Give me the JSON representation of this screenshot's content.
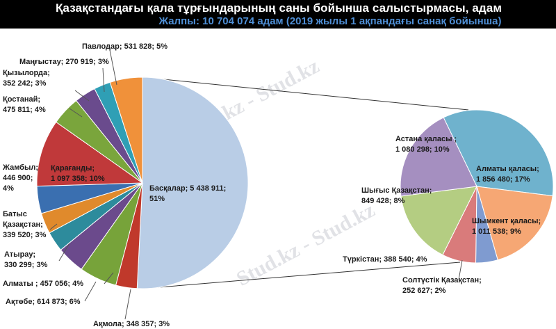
{
  "header": {
    "title": "Қазақстандағы қала тұрғындарының саны бойынша салыстырмасы, адам",
    "subtitle": "Жалпы: 10 704 074 адам (2019 жылы 1 ақпандағы санақ бойынша)"
  },
  "watermark": {
    "text": "Stud.kz - Stud.kz"
  },
  "chart_data": [
    {
      "type": "pie",
      "title": "Қазақстандағы қала тұрғындарының саны бойынша салыстырмасы, адам",
      "subtitle": "Жалпы: 10 704 074 адам (2019 жылы 1 ақпандағы санақ бойынша)",
      "slices": [
        {
          "name": "Басқалар",
          "value": 5438911,
          "percent": 51,
          "color": "#b9cde6",
          "label_lines": [
            "Басқалар; 5 438 911;",
            "51%"
          ]
        },
        {
          "name": "Ақмола",
          "value": 348357,
          "percent": 3,
          "color": "#c0392b",
          "label_lines": [
            "Ақмола; 348 357; 3%"
          ]
        },
        {
          "name": "Ақтөбе",
          "value": 614873,
          "percent": 6,
          "color": "#77a33a",
          "label_lines": [
            "Ақтөбе; 614 873; 6%"
          ]
        },
        {
          "name": "Алматы",
          "value": 457056,
          "percent": 4,
          "color": "#6b4a8c",
          "label_lines": [
            "Алматы ; 457 056; 4%"
          ]
        },
        {
          "name": "Атырау",
          "value": 330299,
          "percent": 3,
          "color": "#2d8b9c",
          "label_lines": [
            "Атырау;",
            "330 299; 3%"
          ]
        },
        {
          "name": "Батыс Қазақстан",
          "value": 339520,
          "percent": 3,
          "color": "#e08a2c",
          "label_lines": [
            "Батыс",
            "Қазақстан;",
            "339 520; 3%"
          ]
        },
        {
          "name": "Жамбыл",
          "value": 446900,
          "percent": 4,
          "color": "#3a6fb0",
          "label_lines": [
            "Жамбыл;",
            "446 900;",
            "4%"
          ]
        },
        {
          "name": "Қарағанды",
          "value": 1097358,
          "percent": 10,
          "color": "#c0393a",
          "label_lines": [
            "Қарағанды;",
            "1 097 358; 10%"
          ]
        },
        {
          "name": "Қостанай",
          "value": 475811,
          "percent": 4,
          "color": "#7aa53c",
          "label_lines": [
            "Қостанай;",
            "475 811; 4%"
          ]
        },
        {
          "name": "Қызылорда",
          "value": 352242,
          "percent": 3,
          "color": "#6a4b8d",
          "label_lines": [
            "Қызылорда;",
            "352 242; 3%"
          ]
        },
        {
          "name": "Маңғыстау",
          "value": 270919,
          "percent": 3,
          "color": "#2f9fb5",
          "label_lines": [
            "Маңғыстау; 270 919; 3%"
          ]
        },
        {
          "name": "Павлодар",
          "value": 531828,
          "percent": 5,
          "color": "#f0913a",
          "label_lines": [
            "Павлодар; 531 828; 5%"
          ]
        }
      ]
    },
    {
      "type": "pie",
      "detail_of": "Басқалар",
      "slices": [
        {
          "name": "Алматы қаласы",
          "value": 1856480,
          "percent": 17,
          "color": "#6fb2cd",
          "label_lines": [
            "Алматы қаласы;",
            "1 856 480; 17%"
          ]
        },
        {
          "name": "Шымкент қаласы",
          "value": 1011538,
          "percent": 9,
          "color": "#f6a774",
          "label_lines": [
            "Шымкент қаласы;",
            "1 011 538; 9%"
          ]
        },
        {
          "name": "Солтүстік Қазақстан",
          "value": 252627,
          "percent": 2,
          "color": "#7f9bd0",
          "label_lines": [
            "Солтүстік Қазақстан;",
            "252 627; 2%"
          ]
        },
        {
          "name": "Түркістан",
          "value": 388540,
          "percent": 4,
          "color": "#d97b7b",
          "label_lines": [
            "Түркістан; 388 540; 4%"
          ]
        },
        {
          "name": "Шығыс Қазақстан",
          "value": 849428,
          "percent": 8,
          "color": "#b4cd82",
          "label_lines": [
            "Шығыс Қазақстан;",
            "849 428; 8%"
          ]
        },
        {
          "name": "Астана қаласы",
          "value": 1080298,
          "percent": 10,
          "color": "#a58fc0",
          "label_lines": [
            "Астана қаласы ;",
            "1 080 298; 10%"
          ]
        }
      ]
    }
  ]
}
